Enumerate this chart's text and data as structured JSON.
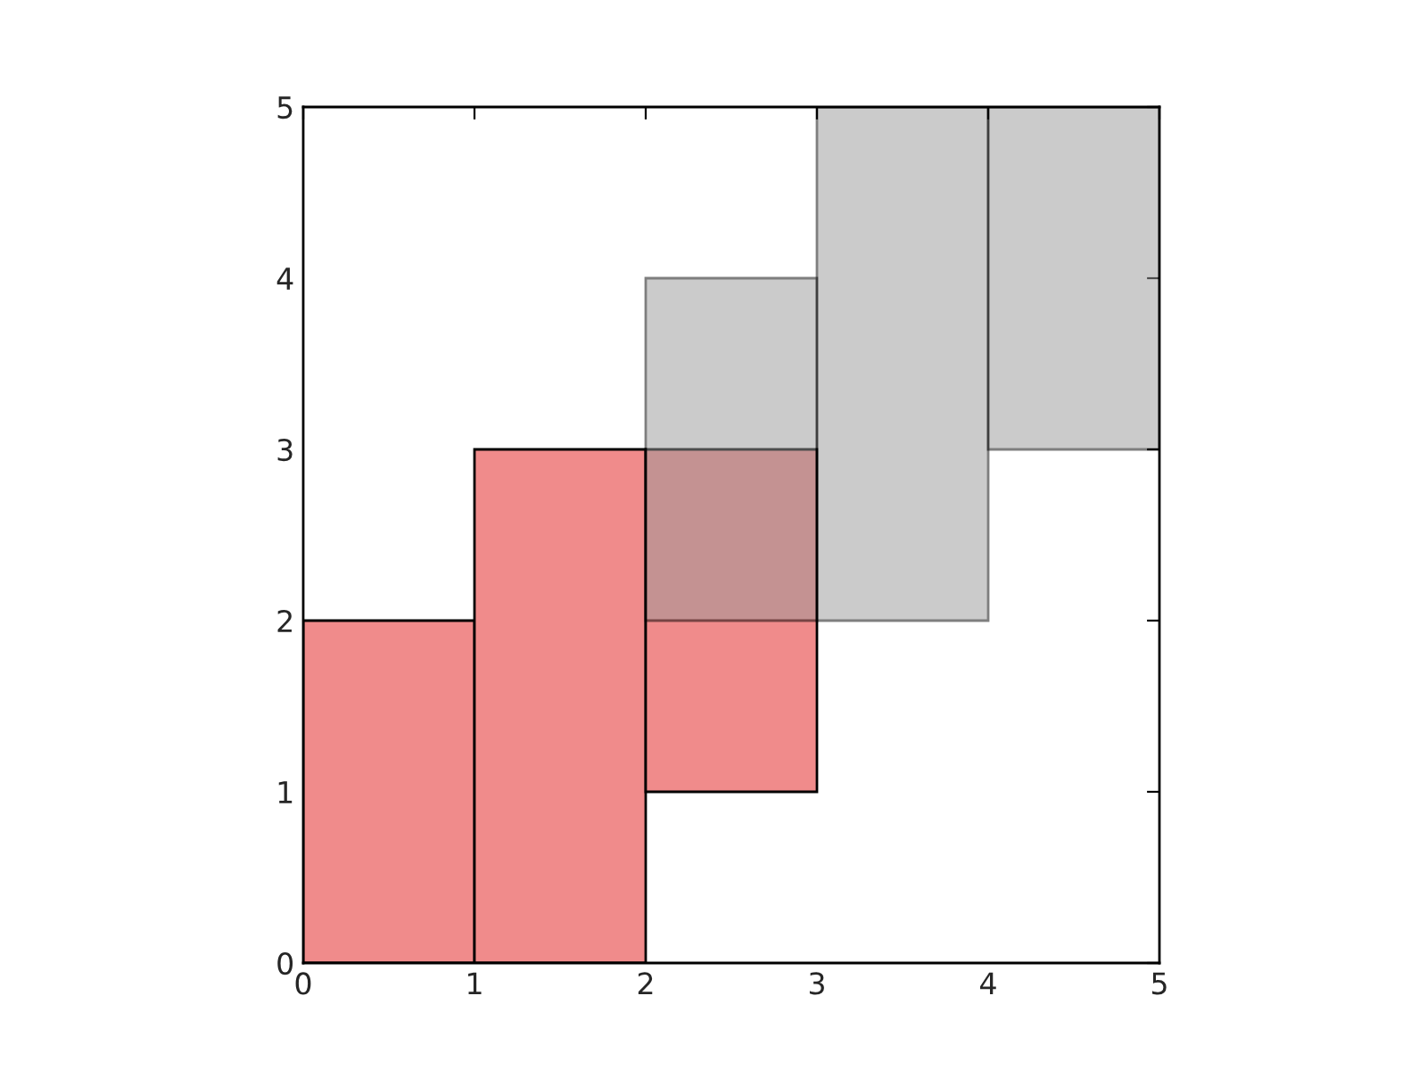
{
  "chart_data": {
    "type": "bar",
    "xlim": [
      0,
      5
    ],
    "ylim": [
      0,
      5
    ],
    "xticks": [
      0,
      1,
      2,
      3,
      4,
      5
    ],
    "yticks": [
      0,
      1,
      2,
      3,
      4,
      5
    ],
    "grid": false,
    "legend": false,
    "series": [
      {
        "color": "#f08b8b",
        "x": [
          0.5,
          1.5,
          2.5
        ],
        "base": [
          0,
          0,
          1
        ],
        "values": [
          2,
          3,
          2
        ]
      },
      {
        "color": "#cccccc",
        "x": [
          2.5,
          3.5,
          4.5
        ],
        "base": [
          2,
          2,
          3
        ],
        "values": [
          2,
          3,
          2
        ]
      }
    ]
  }
}
